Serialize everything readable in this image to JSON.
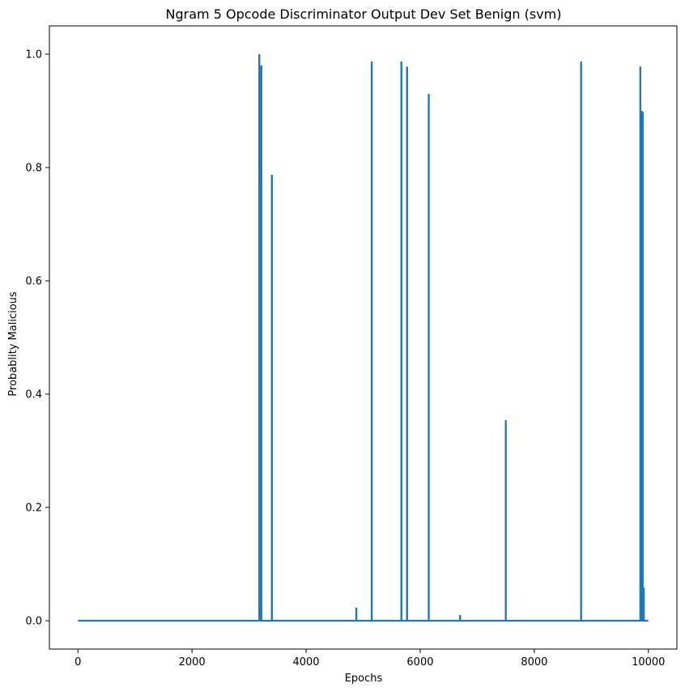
{
  "chart_data": {
    "type": "line",
    "title": "Ngram 5 Opcode Discriminator Output Dev Set Benign (svm)",
    "xlabel": "Epochs",
    "ylabel": "Probablity Malicious",
    "xlim": [
      -500,
      10500
    ],
    "ylim": [
      -0.05,
      1.05
    ],
    "xticks": [
      0,
      2000,
      4000,
      6000,
      8000,
      10000
    ],
    "yticks": [
      0.0,
      0.2,
      0.4,
      0.6,
      0.8,
      1.0
    ],
    "xtick_labels": [
      "0",
      "2000",
      "4000",
      "6000",
      "8000",
      "10000"
    ],
    "ytick_labels": [
      "0.0",
      "0.2",
      "0.4",
      "0.6",
      "0.8",
      "1.0"
    ],
    "grid": false,
    "line_color": "#1f77b4",
    "x_range": [
      0,
      10000
    ],
    "baseline": 0.0,
    "spikes": [
      {
        "x": 3180,
        "y": 1.0
      },
      {
        "x": 3215,
        "y": 0.98
      },
      {
        "x": 3400,
        "y": 0.787
      },
      {
        "x": 4880,
        "y": 0.023
      },
      {
        "x": 5150,
        "y": 0.987
      },
      {
        "x": 5670,
        "y": 0.987
      },
      {
        "x": 5770,
        "y": 0.978
      },
      {
        "x": 6150,
        "y": 0.93
      },
      {
        "x": 6700,
        "y": 0.01
      },
      {
        "x": 7500,
        "y": 0.354
      },
      {
        "x": 8820,
        "y": 0.987
      },
      {
        "x": 9860,
        "y": 0.978
      },
      {
        "x": 9880,
        "y": 0.9
      },
      {
        "x": 9900,
        "y": 0.898
      },
      {
        "x": 9920,
        "y": 0.058
      }
    ]
  }
}
